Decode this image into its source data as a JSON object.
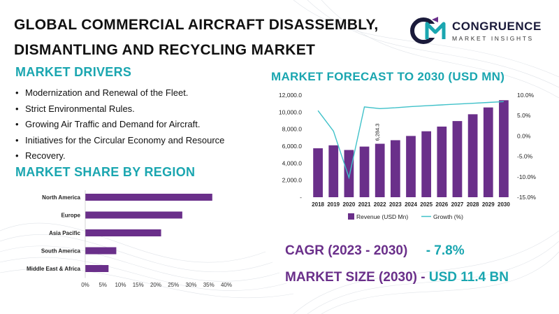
{
  "header": {
    "title_line1": "GLOBAL COMMERCIAL AIRCRAFT DISASSEMBLY,",
    "title_line2": "DISMANTLING AND RECYCLING MARKET"
  },
  "logo": {
    "name": "CONGRUENCE",
    "tagline": "MARKET INSIGHTS",
    "mark": "CM",
    "colors": [
      "#1aa6b0",
      "#6a2f8a",
      "#1a1a3a"
    ]
  },
  "drivers": {
    "heading": "MARKET DRIVERS",
    "items": [
      "Modernization and Renewal of the Fleet.",
      "Strict Environmental Rules.",
      "Growing Air Traffic and Demand for Aircraft.",
      "Initiatives for the Circular Economy and Resource",
      "Recovery."
    ]
  },
  "share": {
    "heading": "MARKET SHARE BY REGION"
  },
  "forecast": {
    "heading": "MARKET FORECAST TO 2030 (USD MN)"
  },
  "summary": {
    "cagr_label": "CAGR (2023 - 2030)",
    "cagr_value": "- 7.8%",
    "size_label": "MARKET SIZE (2030) -",
    "size_value": "USD 11.4 BN"
  },
  "colors": {
    "teal": "#1aa6b0",
    "purple": "#6a2f8a",
    "bar": "#6a2f8a",
    "line": "#3fc1c9"
  },
  "chart_data": [
    {
      "type": "bar",
      "orientation": "horizontal",
      "title": "MARKET SHARE BY REGION",
      "categories": [
        "North America",
        "Europe",
        "Asia Pacific",
        "South America",
        "Middle East & Africa"
      ],
      "values": [
        36,
        27.5,
        21.5,
        8.8,
        6.6
      ],
      "xlim": [
        0,
        40
      ],
      "xticks": [
        "0%",
        "5%",
        "10%",
        "15%",
        "20%",
        "25%",
        "30%",
        "35%",
        "40%"
      ],
      "grid": false
    },
    {
      "type": "bar",
      "title": "MARKET FORECAST TO 2030 (USD MN)",
      "categories": [
        "2018",
        "2019",
        "2020",
        "2021",
        "2022",
        "2023",
        "2024",
        "2025",
        "2026",
        "2027",
        "2028",
        "2029",
        "2030"
      ],
      "series": [
        {
          "name": "Revenue (USD Mn)",
          "type": "bar",
          "axis": "left",
          "values": [
            5750,
            6100,
            5550,
            5950,
            6284.3,
            6700,
            7200,
            7750,
            8300,
            8950,
            9750,
            10550,
            11400
          ]
        },
        {
          "name": "Growth (%)",
          "type": "line",
          "axis": "right",
          "values": [
            6.2,
            1.2,
            -10.2,
            7.1,
            6.7,
            6.9,
            7.2,
            7.4,
            7.6,
            7.8,
            8.0,
            8.2,
            8.4
          ]
        }
      ],
      "data_labels": [
        {
          "category": "2022",
          "text": "6,284.3"
        }
      ],
      "ylim_left": [
        0,
        12000
      ],
      "yticks_left": [
        "-",
        "2,000.0",
        "4,000.0",
        "6,000.0",
        "8,000.0",
        "10,000.0",
        "12,000.0"
      ],
      "ylim_right": [
        -15,
        10
      ],
      "yticks_right": [
        "-15.0%",
        "-10.0%",
        "-5.0%",
        "0.0%",
        "5.0%",
        "10.0%"
      ],
      "legend": "bottom",
      "grid": false
    }
  ]
}
